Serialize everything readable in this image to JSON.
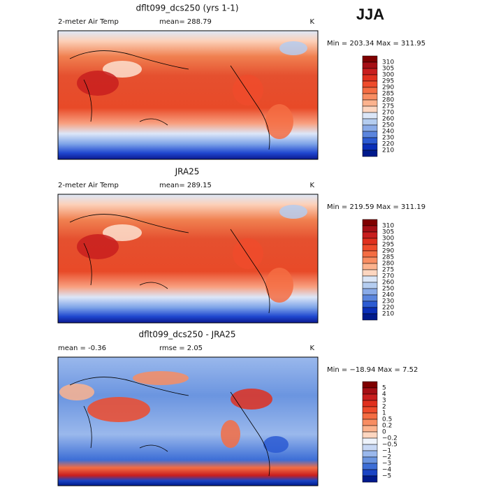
{
  "header": {
    "title": "JJA"
  },
  "panels": [
    {
      "title": "dflt099_dcs250 (yrs 1-1)",
      "left": "2-meter Air Temp",
      "center": "mean= 288.79",
      "right": "K",
      "minmax": "Min = 203.34 Max = 311.95",
      "colorbar": {
        "labels": [
          "310",
          "305",
          "300",
          "295",
          "290",
          "285",
          "280",
          "275",
          "270",
          "260",
          "250",
          "240",
          "230",
          "220",
          "210"
        ],
        "colors": [
          "#7f0000",
          "#a50f15",
          "#c81e1e",
          "#e0301e",
          "#ee4b2b",
          "#f46d43",
          "#f88d62",
          "#fcb38e",
          "#fdd6c0",
          "#dbe6f7",
          "#b5cdf0",
          "#8aabe8",
          "#5b85dd",
          "#2c5bd2",
          "#0a2fb8",
          "#001a8c"
        ]
      }
    },
    {
      "title": "JRA25",
      "left": "2-meter Air Temp",
      "center": "mean= 289.15",
      "right": "K",
      "minmax": "Min = 219.59 Max = 311.19",
      "colorbar": {
        "labels": [
          "310",
          "305",
          "300",
          "295",
          "290",
          "285",
          "280",
          "275",
          "270",
          "260",
          "250",
          "240",
          "230",
          "220",
          "210"
        ],
        "colors": [
          "#7f0000",
          "#a50f15",
          "#c81e1e",
          "#e0301e",
          "#ee4b2b",
          "#f46d43",
          "#f88d62",
          "#fcb38e",
          "#fdd6c0",
          "#dbe6f7",
          "#b5cdf0",
          "#8aabe8",
          "#5b85dd",
          "#2c5bd2",
          "#0a2fb8",
          "#001a8c"
        ]
      }
    },
    {
      "title": "dflt099_dcs250 - JRA25",
      "left": "mean =   -0.36",
      "center": "rmse =    2.05",
      "right": "K",
      "minmax": "Min = −18.94 Max =    7.52",
      "colorbar": {
        "labels": [
          "5",
          "4",
          "3",
          "2",
          "1",
          "0.5",
          "0.2",
          "0",
          "−0.2",
          "−0.5",
          "−1",
          "−2",
          "−3",
          "−4",
          "−5"
        ],
        "colors": [
          "#7f0000",
          "#a50f15",
          "#c81e1e",
          "#e0301e",
          "#ee4b2b",
          "#f46d43",
          "#f88d62",
          "#fcb38e",
          "#fdd6c0",
          "#eef3fb",
          "#c8d8f4",
          "#9ab8ec",
          "#6b95e0",
          "#3d6ed6",
          "#1a44c4",
          "#001a8c"
        ]
      }
    }
  ]
}
